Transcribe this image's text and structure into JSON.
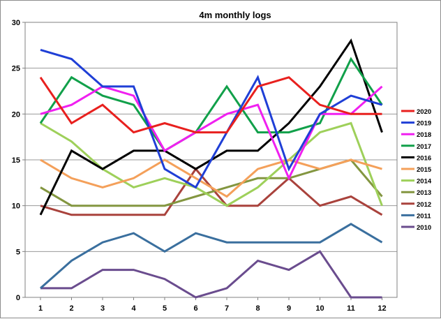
{
  "chart_data": {
    "type": "line",
    "title": "4m monthly logs",
    "xlabel": "",
    "ylabel": "",
    "x": [
      1,
      2,
      3,
      4,
      5,
      6,
      7,
      8,
      9,
      10,
      11,
      12
    ],
    "ylim": [
      0,
      30
    ],
    "yticks": [
      0,
      5,
      10,
      15,
      20,
      25,
      30
    ],
    "grid": true,
    "legend_position": "right",
    "series": [
      {
        "name": "2020",
        "color": "#e8201e",
        "values": [
          24,
          19,
          21,
          18,
          19,
          18,
          18,
          23,
          24,
          21,
          20,
          20
        ]
      },
      {
        "name": "2019",
        "color": "#1f3fd6",
        "values": [
          27,
          26,
          23,
          23,
          14,
          12,
          18,
          24,
          14,
          20,
          22,
          21
        ]
      },
      {
        "name": "2018",
        "color": "#f020f0",
        "values": [
          20,
          21,
          23,
          22,
          16,
          18,
          20,
          21,
          13,
          20,
          20,
          23
        ]
      },
      {
        "name": "2017",
        "color": "#11a04a",
        "values": [
          19,
          24,
          22,
          21,
          16,
          18,
          23,
          18,
          18,
          19,
          26,
          21
        ]
      },
      {
        "name": "2016",
        "color": "#000000",
        "values": [
          9,
          16,
          14,
          16,
          16,
          14,
          16,
          16,
          19,
          23,
          28,
          18
        ]
      },
      {
        "name": "2015",
        "color": "#f4a05a",
        "values": [
          15,
          13,
          12,
          13,
          15,
          13,
          11,
          14,
          15,
          14,
          15,
          14
        ]
      },
      {
        "name": "2014",
        "color": "#9ed05a",
        "values": [
          19,
          17,
          14,
          12,
          13,
          12,
          10,
          12,
          15,
          18,
          19,
          10
        ]
      },
      {
        "name": "2013",
        "color": "#839640",
        "values": [
          12,
          10,
          10,
          10,
          10,
          11,
          12,
          13,
          13,
          14,
          15,
          11
        ]
      },
      {
        "name": "2012",
        "color": "#a9423c",
        "values": [
          10,
          9,
          9,
          9,
          9,
          14,
          10,
          10,
          13,
          10,
          11,
          9
        ]
      },
      {
        "name": "2011",
        "color": "#3a6f9e",
        "values": [
          1,
          4,
          6,
          7,
          5,
          7,
          6,
          6,
          6,
          6,
          8,
          6
        ]
      },
      {
        "name": "2010",
        "color": "#6a4c8e",
        "values": [
          1,
          1,
          3,
          3,
          2,
          0,
          1,
          4,
          3,
          5,
          0,
          0
        ]
      }
    ]
  }
}
